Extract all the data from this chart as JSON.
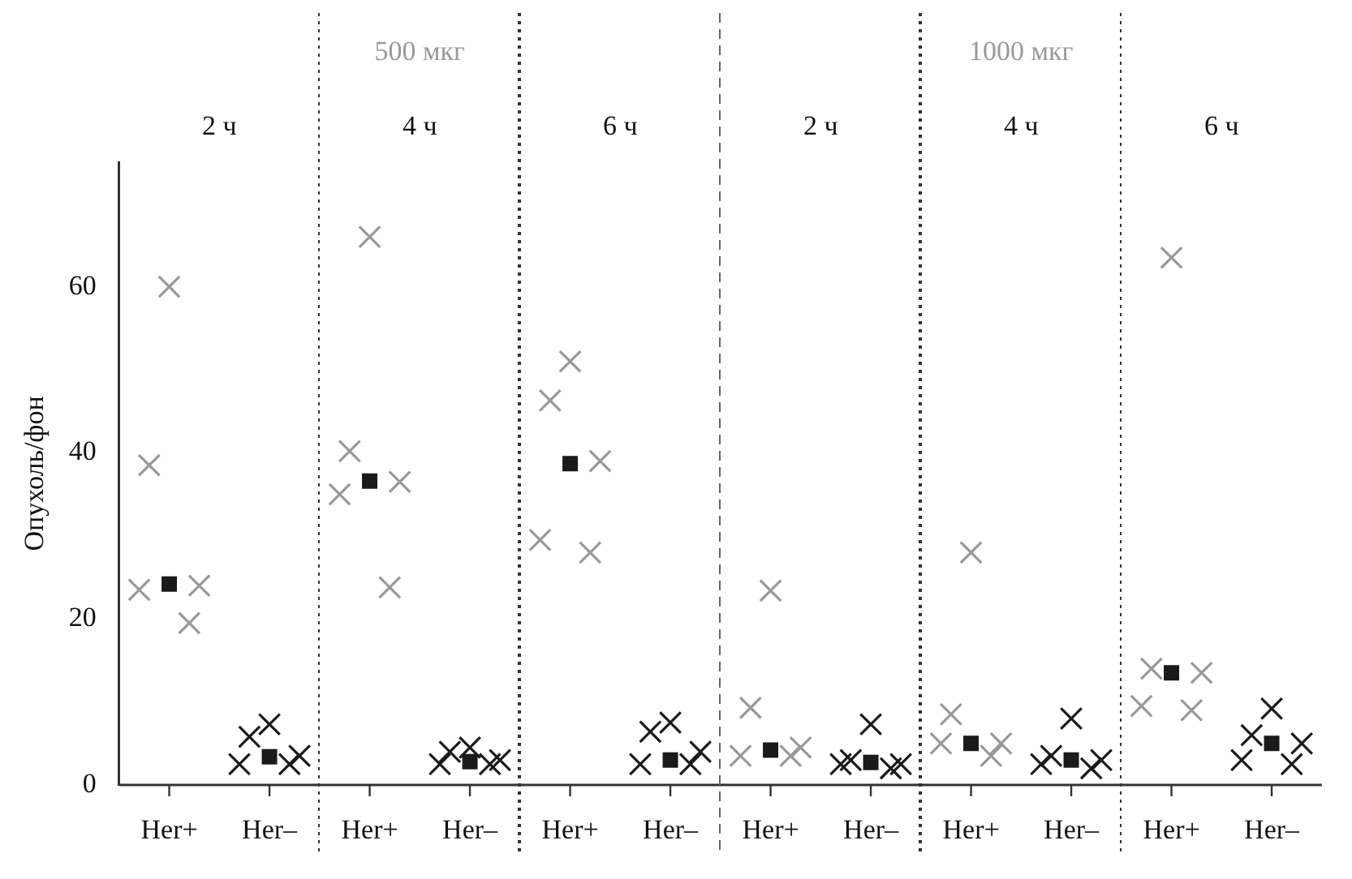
{
  "chart_data": {
    "type": "scatter",
    "ylabel": "Опухоль/фон",
    "categories": [
      "Her+",
      "Her–",
      "Her+",
      "Her–",
      "Her+",
      "Her–",
      "Her+",
      "Her–",
      "Her+",
      "Her–",
      "Her+",
      "Her–"
    ],
    "series": [
      {
        "colors": [
          "#999999",
          "#1a1a1a",
          "#999999",
          "#1a1a1a",
          "#999999",
          "#1a1a1a",
          "#999999",
          "#1a1a1a",
          "#999999",
          "#1a1a1a",
          "#999999",
          "#1a1a1a"
        ],
        "marker": "cross",
        "values": [
          60,
          7.3,
          66,
          4.5,
          51,
          7.5,
          23.4,
          7.3,
          28,
          8,
          63.5,
          9.2
        ]
      },
      {
        "colors": [
          "#999999",
          "#1a1a1a",
          "#999999",
          "#1a1a1a",
          "#999999",
          "#1a1a1a",
          "#999999",
          "#1a1a1a",
          "#999999",
          "#1a1a1a",
          "#999999",
          "#1a1a1a"
        ],
        "marker": "cross",
        "values": [
          38.5,
          5.8,
          40.2,
          4,
          46.3,
          6.4,
          9.3,
          3,
          8.5,
          3.5,
          14,
          6
        ]
      },
      {
        "colors": [
          "#999999",
          "#1a1a1a",
          "#999999",
          "#1a1a1a",
          "#999999",
          "#1a1a1a",
          "#999999",
          "#1a1a1a",
          "#999999",
          "#1a1a1a",
          "#999999",
          "#1a1a1a"
        ],
        "marker": "cross",
        "values": [
          24,
          3.5,
          36.5,
          3,
          39,
          4,
          4.5,
          2.5,
          5,
          3,
          13.5,
          5
        ]
      },
      {
        "colors": [
          "#999999",
          "#1a1a1a",
          "#999999",
          "#1a1a1a",
          "#999999",
          "#1a1a1a",
          "#999999",
          "#1a1a1a",
          "#999999",
          "#1a1a1a",
          "#999999",
          "#1a1a1a"
        ],
        "marker": "cross",
        "values": [
          23.5,
          2.5,
          35,
          2.5,
          29.5,
          2.5,
          3.5,
          2.5,
          5,
          2.5,
          9.5,
          3
        ]
      },
      {
        "colors": [
          "#999999",
          "#1a1a1a",
          "#999999",
          "#1a1a1a",
          "#999999",
          "#1a1a1a",
          "#999999",
          "#1a1a1a",
          "#999999",
          "#1a1a1a",
          "#999999",
          "#1a1a1a"
        ],
        "marker": "cross",
        "values": [
          19.5,
          2.5,
          23.8,
          2.5,
          28,
          2.5,
          3.5,
          2,
          3.5,
          2,
          9,
          2.5
        ]
      },
      {
        "color": "#1a1a1a",
        "marker": "square",
        "values": [
          24.2,
          3.4,
          36.6,
          2.8,
          38.7,
          3,
          4.2,
          2.7,
          5,
          3,
          13.5,
          5
        ]
      }
    ],
    "ylim": [
      0,
      75
    ],
    "yticks": [
      0,
      20,
      40,
      60
    ],
    "grid": false,
    "legend": false,
    "annotations": [
      "2 ч",
      "4 ч",
      "6 ч",
      "2 ч",
      "4 ч",
      "6 ч",
      "500 мкг",
      "1000 мкг"
    ]
  }
}
